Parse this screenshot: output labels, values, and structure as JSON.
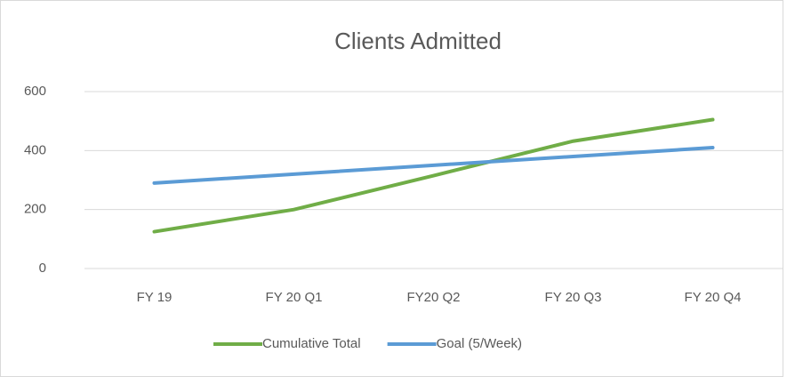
{
  "chart_data": {
    "type": "line",
    "title": "Clients Admitted",
    "categories": [
      "FY 19",
      "FY 20 Q1",
      "FY20 Q2",
      "FY 20 Q3",
      "FY 20 Q4"
    ],
    "series": [
      {
        "name": "Cumulative Total",
        "color": "#70ad47",
        "values": [
          125,
          200,
          315,
          432,
          505
        ]
      },
      {
        "name": "Goal (5/Week)",
        "color": "#5b9bd5",
        "values": [
          290,
          320,
          350,
          380,
          410
        ]
      }
    ],
    "ylim": [
      0,
      600
    ],
    "yticks": [
      0,
      200,
      400,
      600
    ],
    "grid": true,
    "legend": "bottom"
  }
}
